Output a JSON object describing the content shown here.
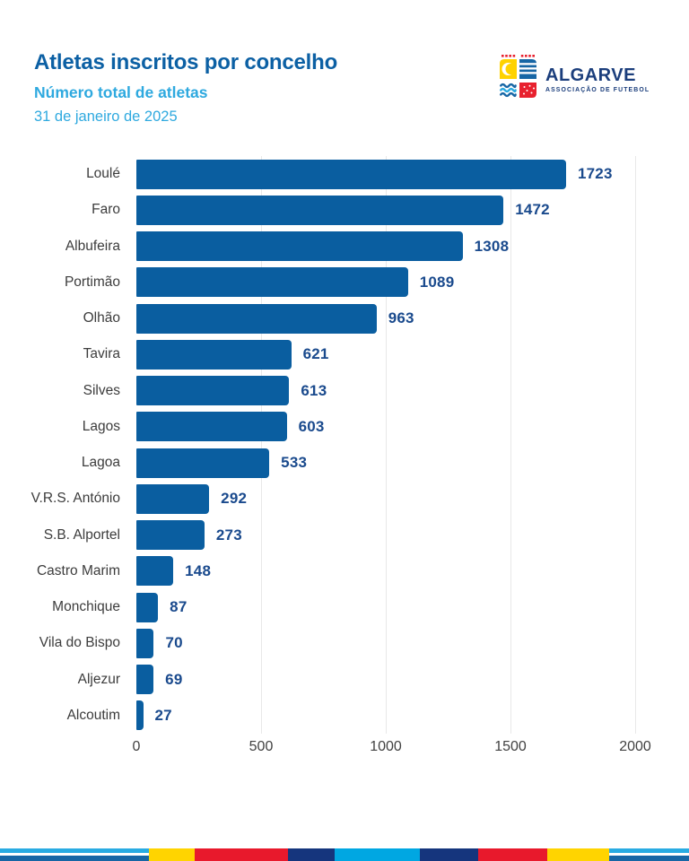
{
  "header": {
    "title": "Atletas inscritos por concelho",
    "subtitle": "Número total de atletas",
    "date": "31 de janeiro de 2025"
  },
  "logo": {
    "name": "ALGARVE",
    "tagline": "ASSOCIAÇÃO DE FUTEBOL"
  },
  "chart_data": {
    "type": "bar",
    "orientation": "horizontal",
    "title": "Atletas inscritos por concelho",
    "subtitle": "Número total de atletas",
    "date_label": "31 de janeiro de 2025",
    "categories": [
      "Loulé",
      "Faro",
      "Albufeira",
      "Portimão",
      "Olhão",
      "Tavira",
      "Silves",
      "Lagos",
      "Lagoa",
      "V.R.S. António",
      "S.B. Alportel",
      "Castro Marim",
      "Monchique",
      "Vila do Bispo",
      "Aljezur",
      "Alcoutim"
    ],
    "values": [
      1723,
      1472,
      1308,
      1089,
      963,
      621,
      613,
      603,
      533,
      292,
      273,
      148,
      87,
      70,
      69,
      27
    ],
    "xlim": [
      0,
      2000
    ],
    "xticks": [
      0,
      500,
      1000,
      1500,
      2000
    ],
    "grid": true,
    "legend": false,
    "value_labels": true
  },
  "colors": {
    "title_blue": "#0C60A4",
    "accent_cyan": "#2EA9DF",
    "bar_blue": "#0A5EA0",
    "value_navy": "#1A4A8D",
    "label_gray": "#3C3C3C",
    "gridline": "#E8E8E8",
    "logo_navy": "#1B3E7C"
  },
  "footer": {
    "stripe_colors": [
      "#29ABE2",
      "#FFFFFF",
      "#1766A5"
    ],
    "segments": [
      {
        "kind": "stripes",
        "width": 166
      },
      {
        "kind": "block",
        "color": "#FFD400",
        "width": 51
      },
      {
        "kind": "block",
        "color": "#E8192C",
        "width": 104
      },
      {
        "kind": "block",
        "color": "#15357D",
        "width": 52
      },
      {
        "kind": "block",
        "color": "#00A7E2",
        "width": 95
      },
      {
        "kind": "block",
        "color": "#15357D",
        "width": 65
      },
      {
        "kind": "block",
        "color": "#E8192C",
        "width": 77
      },
      {
        "kind": "block",
        "color": "#FFD400",
        "width": 69
      },
      {
        "kind": "stripes",
        "width": 89
      }
    ]
  }
}
